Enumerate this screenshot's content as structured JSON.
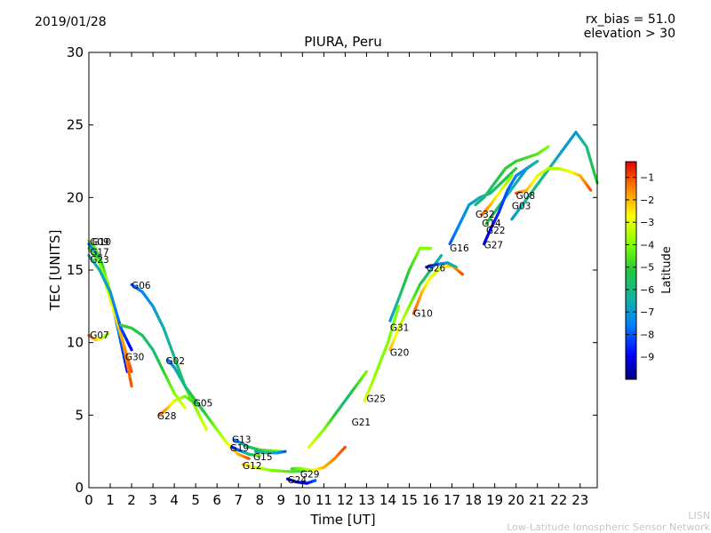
{
  "header": {
    "date": "2019/01/28",
    "rx_bias": "rx_bias = 51.0",
    "elevation": "elevation > 30"
  },
  "footer": {
    "line1": "LISN",
    "line2": "Low-Latitude Ionospheric Sensor Network"
  },
  "chart_data": {
    "type": "scatter",
    "title": "PIURA, Peru",
    "xlabel": "Time [UT]",
    "ylabel": "TEC [UNITS]",
    "xlim": [
      0,
      23.8
    ],
    "ylim": [
      0,
      30
    ],
    "xticks": [
      0,
      1,
      2,
      3,
      4,
      5,
      6,
      7,
      8,
      9,
      10,
      11,
      12,
      13,
      14,
      15,
      16,
      17,
      18,
      19,
      20,
      21,
      22,
      23
    ],
    "yticks": [
      0,
      5,
      10,
      15,
      20,
      25,
      30
    ],
    "colorbar": {
      "label": "Latitude",
      "range": [
        -10,
        -0.3
      ],
      "ticks": [
        -1,
        -2,
        -3,
        -4,
        -5,
        -6,
        -7,
        -8,
        -9
      ]
    },
    "series": [
      {
        "name": "G09",
        "points": [
          [
            0,
            17
          ],
          [
            0.3,
            16.5
          ],
          [
            0.6,
            15.5
          ],
          [
            0.9,
            14
          ],
          [
            1.2,
            12
          ],
          [
            1.5,
            10
          ],
          [
            1.8,
            8
          ]
        ],
        "lats": [
          -4,
          -4.5,
          -5,
          -6,
          -7,
          -8,
          -9
        ]
      },
      {
        "name": "G10",
        "points": [
          [
            0,
            16.8
          ],
          [
            0.4,
            16
          ],
          [
            0.8,
            14.5
          ],
          [
            1.2,
            12.5
          ],
          [
            1.6,
            10
          ],
          [
            2,
            7
          ]
        ],
        "lats": [
          -8,
          -6,
          -4,
          -3,
          -2,
          -1
        ]
      },
      {
        "name": "G17",
        "points": [
          [
            0,
            16.5
          ],
          [
            0.5,
            15.5
          ],
          [
            1,
            13
          ],
          [
            1.5,
            10.5
          ],
          [
            2,
            8
          ]
        ],
        "lats": [
          -5,
          -4,
          -3,
          -2,
          -1
        ]
      },
      {
        "name": "G23",
        "points": [
          [
            0,
            16
          ],
          [
            0.5,
            15
          ],
          [
            1,
            13.5
          ],
          [
            1.5,
            11
          ],
          [
            2,
            9.5
          ]
        ],
        "lats": [
          -6,
          -6.5,
          -7,
          -8,
          -9
        ]
      },
      {
        "name": "G07",
        "points": [
          [
            0,
            10.5
          ],
          [
            0.3,
            10.2
          ],
          [
            0.6,
            10.3
          ],
          [
            0.9,
            10.6
          ]
        ],
        "lats": [
          -1,
          -2,
          -3,
          -4
        ]
      },
      {
        "name": "G06",
        "points": [
          [
            2,
            14
          ],
          [
            2.5,
            13.5
          ],
          [
            3,
            12.5
          ],
          [
            3.5,
            11
          ],
          [
            4,
            9
          ],
          [
            4.5,
            7
          ],
          [
            5,
            5.5
          ],
          [
            5.5,
            4
          ]
        ],
        "lats": [
          -8,
          -7.5,
          -7,
          -6.5,
          -6,
          -5,
          -4,
          -3
        ]
      },
      {
        "name": "G30",
        "points": [
          [
            1.5,
            11.2
          ],
          [
            2,
            11
          ],
          [
            2.5,
            10.5
          ],
          [
            3,
            9.5
          ],
          [
            3.5,
            8
          ],
          [
            4,
            6.5
          ],
          [
            4.5,
            5.5
          ]
        ],
        "lats": [
          -5,
          -5,
          -5.5,
          -6,
          -5,
          -4,
          -3
        ]
      },
      {
        "name": "G02",
        "points": [
          [
            3.7,
            8.8
          ],
          [
            4,
            8.3
          ],
          [
            4.5,
            7
          ],
          [
            5,
            6
          ],
          [
            5.5,
            5
          ]
        ],
        "lats": [
          -8,
          -7,
          -6,
          -5,
          -4
        ]
      },
      {
        "name": "G28",
        "points": [
          [
            3.3,
            5
          ],
          [
            3.7,
            5.5
          ],
          [
            4,
            6
          ],
          [
            4.5,
            6.3
          ],
          [
            5,
            5.8
          ]
        ],
        "lats": [
          -1,
          -2,
          -3,
          -4,
          -5
        ]
      },
      {
        "name": "G05",
        "points": [
          [
            5,
            6
          ],
          [
            5.5,
            5
          ],
          [
            6,
            4
          ],
          [
            6.5,
            3
          ],
          [
            7,
            2.3
          ],
          [
            7.5,
            2
          ]
        ],
        "lats": [
          -6,
          -5,
          -4,
          -3,
          -2,
          -1
        ]
      },
      {
        "name": "G13",
        "points": [
          [
            6.8,
            3.3
          ],
          [
            7.5,
            2.8
          ],
          [
            8,
            2.6
          ],
          [
            9,
            2.5
          ]
        ],
        "lats": [
          -8,
          -6,
          -5,
          -4
        ]
      },
      {
        "name": "G19",
        "points": [
          [
            6.7,
            2.8
          ],
          [
            7,
            2.6
          ],
          [
            7.5,
            2.3
          ],
          [
            8,
            2.2
          ]
        ],
        "lats": [
          -9,
          -8,
          -6,
          -4
        ]
      },
      {
        "name": "G15",
        "points": [
          [
            7.8,
            2.5
          ],
          [
            8.3,
            2.4
          ],
          [
            8.8,
            2.4
          ],
          [
            9.2,
            2.5
          ]
        ],
        "lats": [
          -7,
          -6,
          -7,
          -8
        ]
      },
      {
        "name": "G12",
        "points": [
          [
            7.2,
            1.6
          ],
          [
            7.8,
            1.4
          ],
          [
            8.5,
            1.2
          ],
          [
            9.5,
            1.1
          ],
          [
            10.5,
            1.2
          ]
        ],
        "lats": [
          -2,
          -3,
          -4,
          -4.5,
          -5
        ]
      },
      {
        "name": "G29",
        "points": [
          [
            9.5,
            1.3
          ],
          [
            10,
            1.3
          ],
          [
            10.5,
            1.2
          ],
          [
            11,
            1.4
          ],
          [
            11.5,
            2
          ],
          [
            12,
            2.8
          ]
        ],
        "lats": [
          -5,
          -4,
          -3,
          -2,
          -1.5,
          -1
        ]
      },
      {
        "name": "G24",
        "points": [
          [
            9.3,
            0.6
          ],
          [
            9.7,
            0.4
          ],
          [
            10.2,
            0.3
          ],
          [
            10.6,
            0.5
          ]
        ],
        "lats": [
          -9,
          -9.5,
          -9,
          -8
        ]
      },
      {
        "name": "G21",
        "points": [
          [
            10.3,
            2.8
          ],
          [
            11,
            4
          ],
          [
            11.5,
            5
          ],
          [
            12,
            6
          ],
          [
            12.5,
            7
          ],
          [
            13,
            8
          ]
        ],
        "lats": [
          -3,
          -4,
          -5,
          -6,
          -5,
          -4
        ]
      },
      {
        "name": "G25",
        "points": [
          [
            12.9,
            6
          ],
          [
            13.2,
            7
          ],
          [
            13.6,
            8.5
          ],
          [
            14,
            10
          ],
          [
            14.5,
            12.5
          ]
        ],
        "lats": [
          -3,
          -3.5,
          -4,
          -4,
          -4
        ]
      },
      {
        "name": "G20",
        "points": [
          [
            14.1,
            9.5
          ],
          [
            14.5,
            11
          ],
          [
            15,
            12.5
          ],
          [
            15.5,
            14
          ],
          [
            16,
            15
          ],
          [
            16.5,
            16
          ]
        ],
        "lats": [
          -2,
          -3,
          -4,
          -5,
          -6,
          -6.5
        ]
      },
      {
        "name": "G31",
        "points": [
          [
            14.1,
            11.5
          ],
          [
            14.5,
            13
          ],
          [
            15,
            15
          ],
          [
            15.5,
            16.5
          ],
          [
            16,
            16.5
          ]
        ],
        "lats": [
          -7,
          -6,
          -5,
          -4,
          -4
        ]
      },
      {
        "name": "G10",
        "points": [
          [
            15.2,
            12
          ],
          [
            15.6,
            13.5
          ],
          [
            16,
            14.5
          ],
          [
            16.5,
            15.2
          ],
          [
            17,
            15.3
          ],
          [
            17.5,
            14.7
          ]
        ],
        "lats": [
          -1,
          -2,
          -3,
          -3,
          -2,
          -1
        ]
      },
      {
        "name": "G26",
        "points": [
          [
            15.8,
            15.2
          ],
          [
            16.3,
            15.4
          ],
          [
            16.8,
            15.5
          ],
          [
            17.2,
            15.2
          ]
        ],
        "lats": [
          -9,
          -8,
          -7,
          -6
        ]
      },
      {
        "name": "G16",
        "points": [
          [
            16.9,
            16.8
          ],
          [
            17.3,
            18
          ],
          [
            17.8,
            19.5
          ],
          [
            18.3,
            20
          ],
          [
            18.8,
            20.3
          ],
          [
            19.3,
            21
          ],
          [
            20,
            22
          ]
        ],
        "lats": [
          -8,
          -7.5,
          -7,
          -6.5,
          -6,
          -5.5,
          -5
        ]
      },
      {
        "name": "G32",
        "points": [
          [
            18.1,
            19.5
          ],
          [
            18.5,
            20
          ],
          [
            19,
            21
          ],
          [
            19.5,
            22
          ],
          [
            20,
            22.5
          ],
          [
            21,
            23
          ],
          [
            21.5,
            23.5
          ]
        ],
        "lats": [
          -6,
          -6,
          -5.5,
          -5,
          -5,
          -4.5,
          -4
        ]
      },
      {
        "name": "G14",
        "points": [
          [
            18.4,
            18.8
          ],
          [
            18.8,
            19.5
          ],
          [
            19.3,
            20.5
          ],
          [
            19.8,
            21.5
          ]
        ],
        "lats": [
          -1,
          -2,
          -3,
          -4
        ]
      },
      {
        "name": "G22",
        "points": [
          [
            18.6,
            18.2
          ],
          [
            19,
            19
          ],
          [
            19.5,
            20
          ],
          [
            20,
            21
          ],
          [
            20.5,
            22
          ],
          [
            21,
            22.5
          ]
        ],
        "lats": [
          -5,
          -5.5,
          -6,
          -6.5,
          -7,
          -7
        ]
      },
      {
        "name": "G27",
        "points": [
          [
            18.5,
            16.8
          ],
          [
            18.8,
            17.8
          ],
          [
            19.2,
            19
          ],
          [
            19.6,
            20.5
          ],
          [
            20,
            21.5
          ],
          [
            20.5,
            22
          ],
          [
            21,
            22.5
          ]
        ],
        "lats": [
          -9,
          -9,
          -8.5,
          -8,
          -7.5,
          -7,
          -6
        ]
      },
      {
        "name": "G03",
        "points": [
          [
            19.8,
            18.5
          ],
          [
            20.3,
            19.5
          ],
          [
            20.8,
            20.5
          ],
          [
            21.3,
            21.5
          ],
          [
            21.8,
            22.5
          ],
          [
            22.3,
            23.5
          ],
          [
            22.8,
            24.5
          ],
          [
            23.3,
            23.5
          ],
          [
            23.8,
            21
          ]
        ],
        "lats": [
          -7,
          -6.5,
          -6,
          -6,
          -6.5,
          -7,
          -7,
          -6,
          -5
        ]
      },
      {
        "name": "G08",
        "points": [
          [
            20,
            20.3
          ],
          [
            20.5,
            20.5
          ],
          [
            21,
            21.5
          ],
          [
            21.5,
            22
          ],
          [
            22,
            22
          ],
          [
            22.5,
            21.8
          ],
          [
            23,
            21.5
          ],
          [
            23.5,
            20.5
          ]
        ],
        "lats": [
          -1,
          -2,
          -3,
          -3.5,
          -3.5,
          -3,
          -2,
          -1
        ]
      }
    ],
    "labels": [
      {
        "text": "G09",
        "x": 0.05,
        "y": 16.7
      },
      {
        "text": "G10",
        "x": 0.15,
        "y": 16.7
      },
      {
        "text": "G17",
        "x": 0.05,
        "y": 16.0
      },
      {
        "text": "G23",
        "x": 0.05,
        "y": 15.5
      },
      {
        "text": "G07",
        "x": 0.05,
        "y": 10.3
      },
      {
        "text": "G06",
        "x": 2.0,
        "y": 13.7
      },
      {
        "text": "G30",
        "x": 1.7,
        "y": 8.8
      },
      {
        "text": "G02",
        "x": 3.6,
        "y": 8.5
      },
      {
        "text": "G28",
        "x": 3.2,
        "y": 4.7
      },
      {
        "text": "G05",
        "x": 4.9,
        "y": 5.6
      },
      {
        "text": "G13",
        "x": 6.7,
        "y": 3.1
      },
      {
        "text": "G19",
        "x": 6.6,
        "y": 2.5
      },
      {
        "text": "G15",
        "x": 7.7,
        "y": 1.9
      },
      {
        "text": "G12",
        "x": 7.2,
        "y": 1.3
      },
      {
        "text": "G29",
        "x": 9.9,
        "y": 0.7
      },
      {
        "text": "G24",
        "x": 9.3,
        "y": 0.3
      },
      {
        "text": "G21",
        "x": 12.3,
        "y": 4.3
      },
      {
        "text": "G25",
        "x": 13.0,
        "y": 5.9
      },
      {
        "text": "G20",
        "x": 14.1,
        "y": 9.1
      },
      {
        "text": "G31",
        "x": 14.1,
        "y": 10.8
      },
      {
        "text": "G10",
        "x": 15.2,
        "y": 11.8
      },
      {
        "text": "G26",
        "x": 15.8,
        "y": 14.9
      },
      {
        "text": "G16",
        "x": 16.9,
        "y": 16.3
      },
      {
        "text": "G32",
        "x": 18.1,
        "y": 18.6
      },
      {
        "text": "G14",
        "x": 18.4,
        "y": 18.0
      },
      {
        "text": "G22",
        "x": 18.6,
        "y": 17.5
      },
      {
        "text": "G27",
        "x": 18.5,
        "y": 16.5
      },
      {
        "text": "G03",
        "x": 19.8,
        "y": 19.2
      },
      {
        "text": "G08",
        "x": 20.0,
        "y": 19.9
      }
    ]
  }
}
